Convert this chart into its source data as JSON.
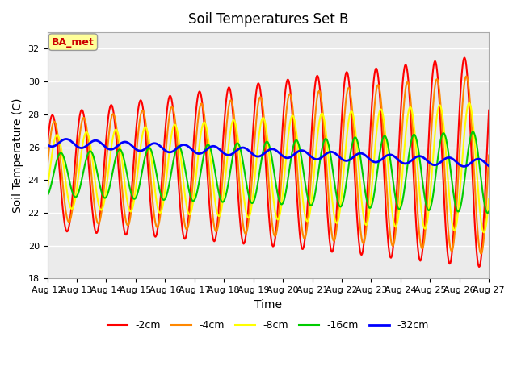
{
  "title": "Soil Temperatures Set B",
  "xlabel": "Time",
  "ylabel": "Soil Temperature (C)",
  "ylim": [
    18,
    33
  ],
  "yticks": [
    18,
    20,
    22,
    24,
    26,
    28,
    30,
    32
  ],
  "xtick_labels": [
    "Aug 12",
    "Aug 13",
    "Aug 14",
    "Aug 15",
    "Aug 16",
    "Aug 17",
    "Aug 18",
    "Aug 19",
    "Aug 20",
    "Aug 21",
    "Aug 22",
    "Aug 23",
    "Aug 24",
    "Aug 25",
    "Aug 26",
    "Aug 27"
  ],
  "series_colors": {
    "-2cm": "#ff0000",
    "-4cm": "#ff8800",
    "-8cm": "#ffff00",
    "-16cm": "#00cc00",
    "-32cm": "#0000ff"
  },
  "series_linewidths": {
    "-2cm": 1.5,
    "-4cm": 1.5,
    "-8cm": 1.5,
    "-16cm": 1.5,
    "-32cm": 2.0
  },
  "annotation_text": "BA_met",
  "annotation_text_color": "#cc0000",
  "annotation_box_facecolor": "#ffff99",
  "annotation_box_edgecolor": "#999999",
  "plot_bg_color": "#ebebeb",
  "title_fontsize": 12,
  "axis_fontsize": 10,
  "tick_fontsize": 8
}
